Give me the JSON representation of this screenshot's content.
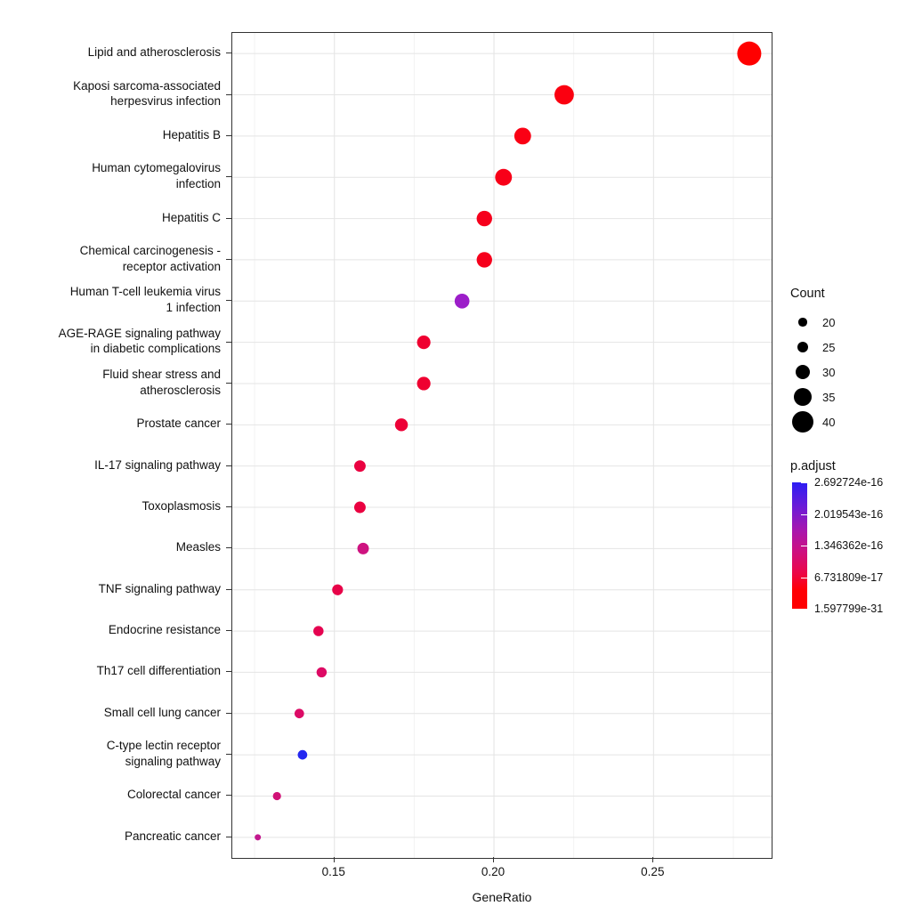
{
  "chart_data": {
    "type": "scatter",
    "title": "",
    "xlabel": "GeneRatio",
    "ylabel": "",
    "xlim": [
      0.118,
      0.287
    ],
    "x_ticks": [
      0.15,
      0.2,
      0.25
    ],
    "x_tick_labels": [
      "0.15",
      "0.20",
      "0.25"
    ],
    "x_minor_ticks": [
      0.125,
      0.175,
      0.225,
      0.275
    ],
    "grid": true,
    "legend_position": "right",
    "size_legend": {
      "title": "Count",
      "values": [
        20,
        25,
        30,
        35,
        40
      ]
    },
    "color_legend": {
      "title": "p.adjust",
      "labels": [
        "2.692724e-16",
        "2.019543e-16",
        "1.346362e-16",
        "6.731809e-17",
        "1.597799e-31"
      ],
      "top_color": "#2C1DF4",
      "bottom_color": "#FF0000"
    },
    "points": [
      {
        "label": "Lipid and atherosclerosis",
        "gene_ratio": 0.28,
        "count": 44,
        "color": "#FF0000"
      },
      {
        "label": "Kaposi sarcoma-associated\nherpesvirus infection",
        "gene_ratio": 0.222,
        "count": 37,
        "color": "#FB0010"
      },
      {
        "label": "Hepatitis B",
        "gene_ratio": 0.209,
        "count": 33,
        "color": "#FA0014"
      },
      {
        "label": "Human cytomegalovirus\ninfection",
        "gene_ratio": 0.203,
        "count": 33,
        "color": "#F80018"
      },
      {
        "label": "Hepatitis C",
        "gene_ratio": 0.197,
        "count": 31,
        "color": "#F6001C"
      },
      {
        "label": "Chemical carcinogenesis -\nreceptor activation",
        "gene_ratio": 0.197,
        "count": 31,
        "color": "#F6001C"
      },
      {
        "label": "Human T-cell leukemia virus\n1 infection",
        "gene_ratio": 0.19,
        "count": 30,
        "color": "#9C1EC9"
      },
      {
        "label": "AGE-RAGE signaling pathway\nin diabetic complications",
        "gene_ratio": 0.178,
        "count": 28,
        "color": "#EF0030"
      },
      {
        "label": "Fluid shear stress and\natherosclerosis",
        "gene_ratio": 0.178,
        "count": 28,
        "color": "#EF0030"
      },
      {
        "label": "Prostate cancer",
        "gene_ratio": 0.171,
        "count": 27,
        "color": "#ED0137"
      },
      {
        "label": "IL-17 signaling pathway",
        "gene_ratio": 0.158,
        "count": 25,
        "color": "#EA0140"
      },
      {
        "label": "Toxoplasmosis",
        "gene_ratio": 0.158,
        "count": 25,
        "color": "#EA0140"
      },
      {
        "label": "Measles",
        "gene_ratio": 0.159,
        "count": 25,
        "color": "#CE1380"
      },
      {
        "label": "TNF signaling pathway",
        "gene_ratio": 0.151,
        "count": 24,
        "color": "#E70348"
      },
      {
        "label": "Endocrine resistance",
        "gene_ratio": 0.145,
        "count": 23,
        "color": "#E50350"
      },
      {
        "label": "Th17 cell differentiation",
        "gene_ratio": 0.146,
        "count": 23,
        "color": "#DD0A64"
      },
      {
        "label": "Small cell lung cancer",
        "gene_ratio": 0.139,
        "count": 22,
        "color": "#DC0B66"
      },
      {
        "label": "C-type lectin receptor\nsignaling pathway",
        "gene_ratio": 0.14,
        "count": 22,
        "color": "#2428F0"
      },
      {
        "label": "Colorectal cancer",
        "gene_ratio": 0.132,
        "count": 20,
        "color": "#D11277"
      },
      {
        "label": "Pancreatic cancer",
        "gene_ratio": 0.126,
        "count": 17,
        "color": "#C2188E"
      }
    ]
  }
}
